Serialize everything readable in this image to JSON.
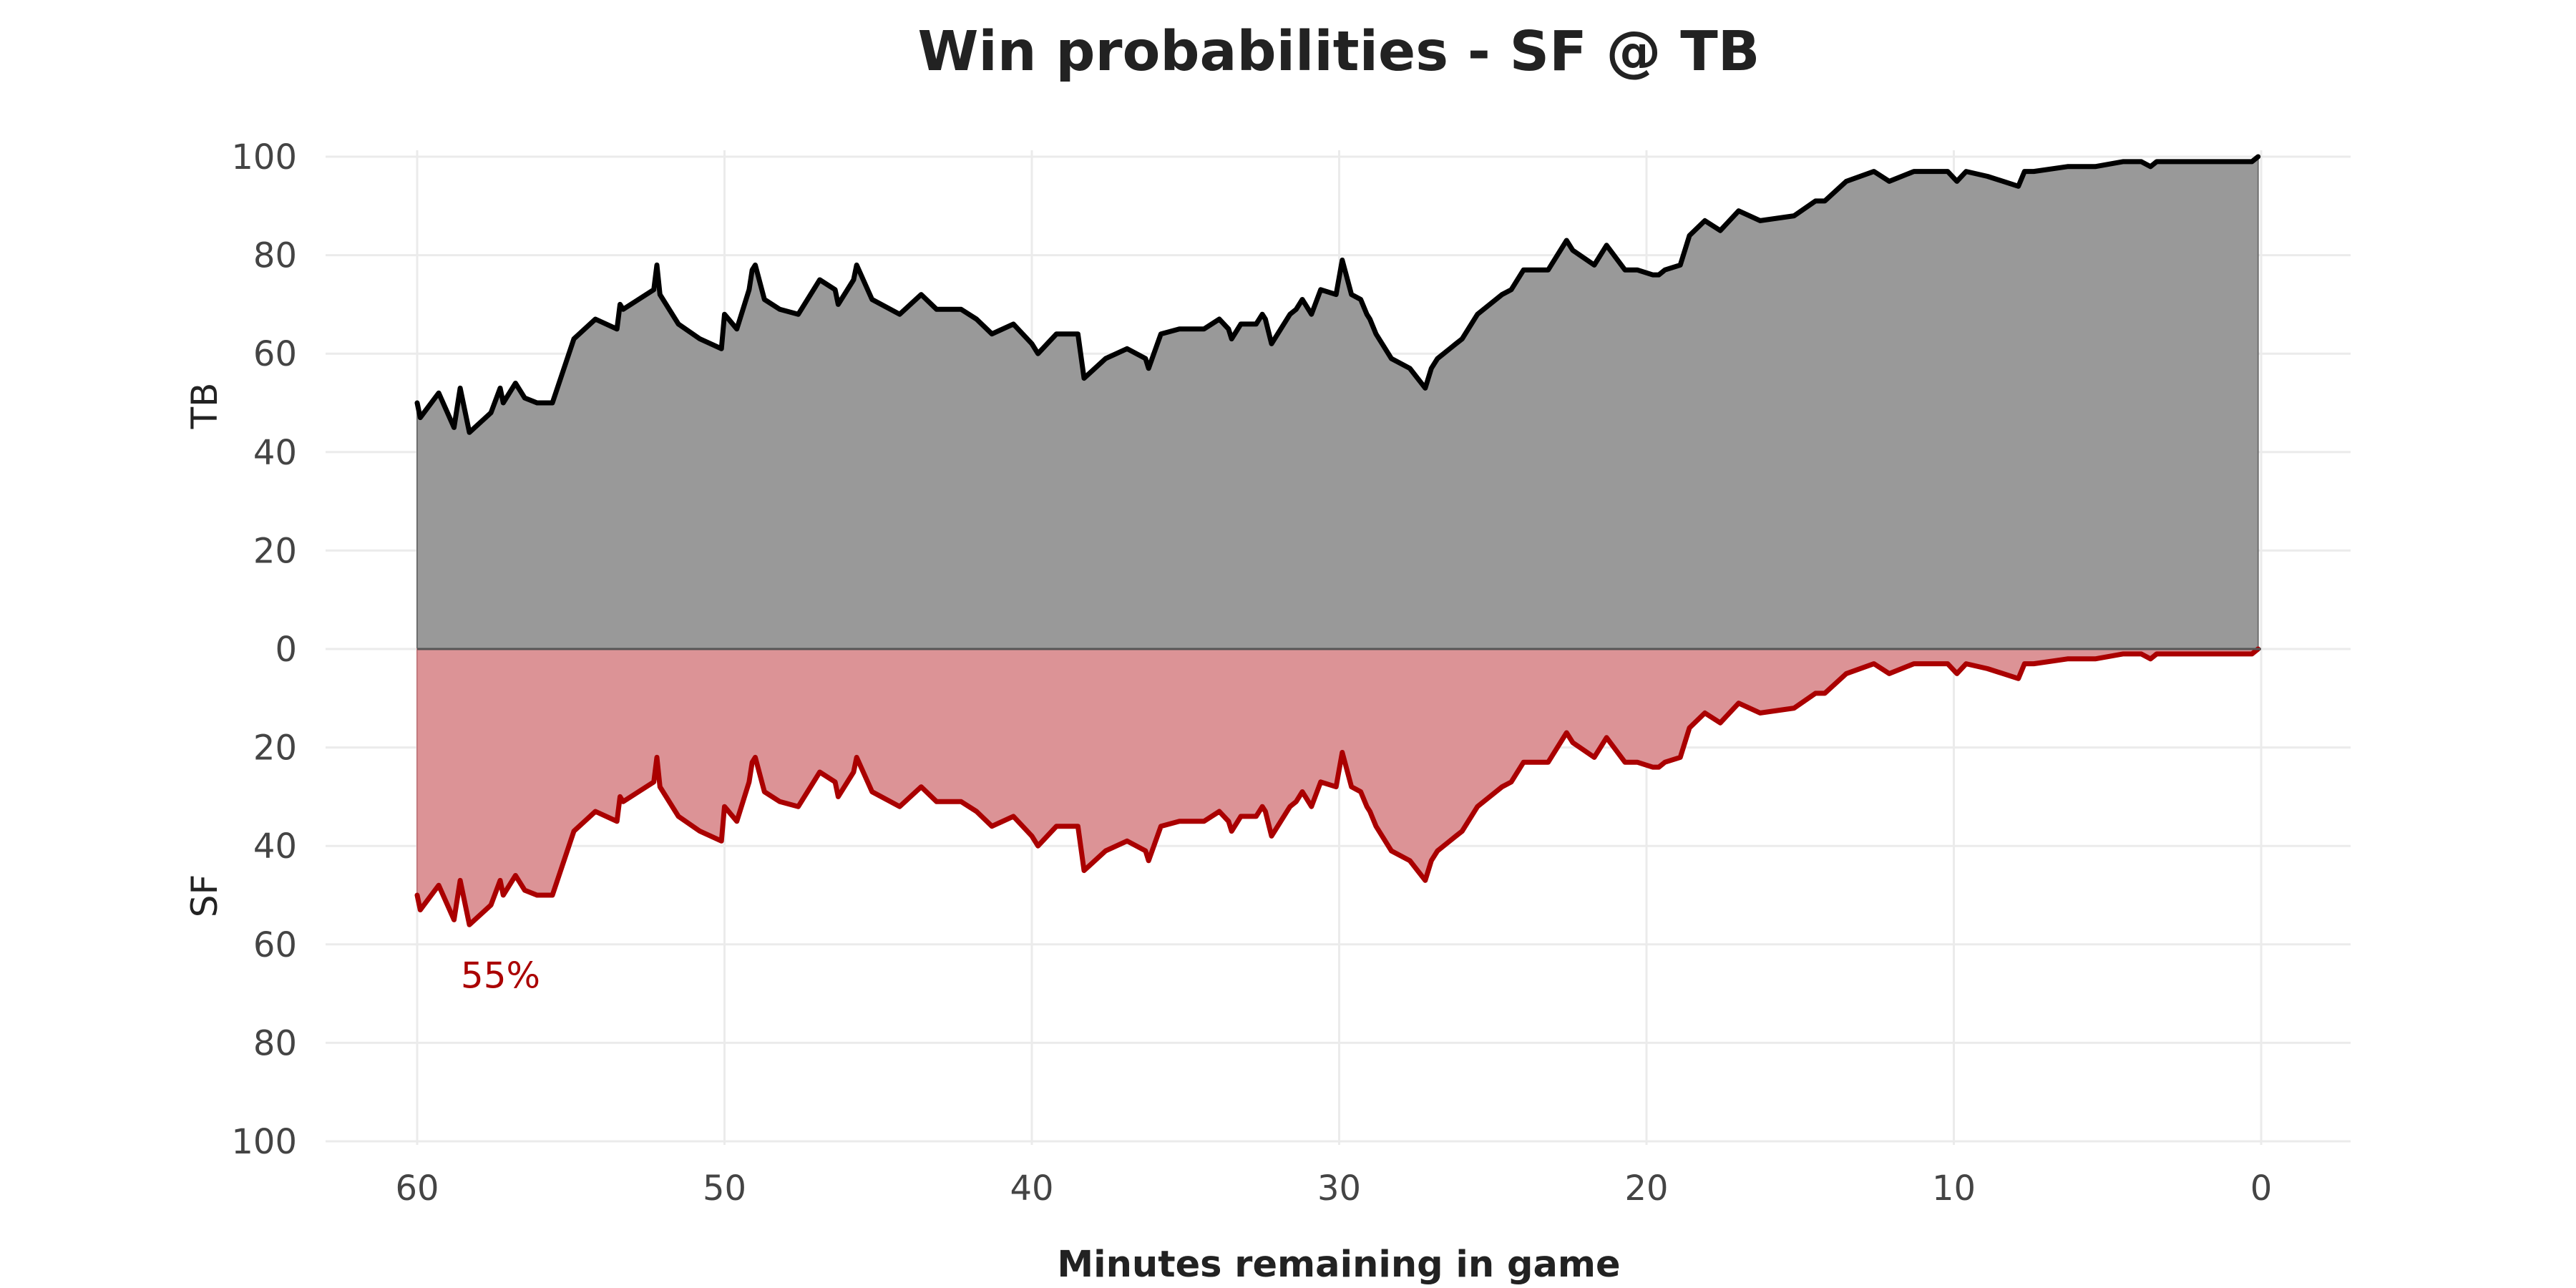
{
  "chart_data": {
    "type": "area",
    "title": "Win probabilities - SF @ TB",
    "xlabel": "Minutes remaining in game",
    "ylabel_top": "TB",
    "ylabel_bottom": "SF",
    "xlim": [
      60,
      0
    ],
    "ylim": [
      -100,
      100
    ],
    "x_ticks": [
      60,
      50,
      40,
      30,
      20,
      10,
      0
    ],
    "y_ticks": [
      100,
      80,
      60,
      40,
      20,
      0,
      20,
      40,
      60,
      80,
      100
    ],
    "grid": true,
    "annotation": {
      "text": "55%",
      "x": 58,
      "y": -55,
      "series": "SF"
    },
    "colors": {
      "TB_line": "#000000",
      "TB_fill": "#999999",
      "SF_line": "#aa0000",
      "SF_fill": "#dc9396"
    },
    "series": [
      {
        "name": "TB",
        "x": [
          60,
          59.9,
          59.3,
          58.8,
          58.6,
          58.3,
          57.6,
          57.3,
          57.2,
          56.8,
          56.5,
          56.1,
          55.6,
          54.9,
          54.2,
          53.5,
          53.4,
          53.3,
          52.3,
          52.2,
          52.1,
          51.5,
          50.8,
          50.1,
          50.0,
          49.6,
          49.2,
          49.1,
          49.0,
          48.7,
          48.2,
          47.6,
          46.9,
          46.4,
          46.3,
          45.8,
          45.7,
          45.2,
          44.3,
          43.6,
          43.1,
          42.3,
          41.8,
          41.3,
          40.6,
          40.0,
          39.8,
          39.2,
          38.5,
          38.3,
          37.6,
          36.9,
          36.3,
          36.2,
          35.8,
          35.2,
          34.4,
          33.9,
          33.6,
          33.5,
          33.2,
          32.7,
          32.5,
          32.4,
          32.2,
          31.6,
          31.4,
          31.2,
          31.1,
          30.9,
          30.6,
          30.1,
          29.9,
          29.6,
          29.3,
          29.1,
          29.0,
          28.8,
          28.3,
          27.7,
          27.2,
          27.0,
          26.8,
          26.4,
          26.2,
          26.0,
          25.5,
          24.7,
          24.4,
          24.0,
          23.2,
          22.6,
          22.4,
          21.7,
          21.3,
          20.7,
          20.3,
          19.8,
          19.6,
          19.4,
          18.9,
          18.6,
          18.1,
          17.6,
          17.0,
          16.3,
          15.2,
          14.5,
          14.2,
          13.5,
          12.6,
          12.1,
          11.3,
          10.2,
          9.9,
          9.6,
          8.9,
          7.9,
          7.7,
          7.4,
          6.3,
          5.4,
          4.5,
          3.9,
          3.6,
          3.4,
          2.7,
          1.9,
          1.2,
          0.9,
          0.3,
          0.1
        ],
        "values": [
          50,
          47,
          52,
          45,
          53,
          44,
          48,
          53,
          50,
          54,
          51,
          50,
          50,
          63,
          67,
          65,
          70,
          69,
          73,
          78,
          72,
          66,
          63,
          61,
          68,
          65,
          73,
          77,
          78,
          71,
          69,
          68,
          75,
          73,
          70,
          75,
          78,
          71,
          68,
          72,
          69,
          69,
          67,
          64,
          66,
          62,
          60,
          64,
          64,
          55,
          59,
          61,
          59,
          57,
          64,
          65,
          65,
          67,
          65,
          63,
          66,
          66,
          68,
          67,
          62,
          68,
          69,
          71,
          70,
          68,
          73,
          72,
          79,
          72,
          71,
          68,
          67,
          64,
          59,
          57,
          53,
          57,
          59,
          61,
          62,
          63,
          68,
          72,
          73,
          77,
          77,
          83,
          81,
          78,
          82,
          77,
          77,
          76,
          76,
          77,
          78,
          84,
          87,
          85,
          89,
          87,
          88,
          91,
          91,
          95,
          97,
          95,
          97,
          97,
          95,
          97,
          96,
          94,
          97,
          97,
          98,
          98,
          99,
          99,
          98,
          99,
          99,
          99,
          99,
          99,
          99,
          100
        ]
      },
      {
        "name": "SF",
        "x": [
          60,
          59.9,
          59.3,
          58.8,
          58.6,
          58.3,
          57.6,
          57.3,
          57.2,
          56.8,
          56.5,
          56.1,
          55.6,
          54.9,
          54.2,
          53.5,
          53.4,
          53.3,
          52.3,
          52.2,
          52.1,
          51.5,
          50.8,
          50.1,
          50.0,
          49.6,
          49.2,
          49.1,
          49.0,
          48.7,
          48.2,
          47.6,
          46.9,
          46.4,
          46.3,
          45.8,
          45.7,
          45.2,
          44.3,
          43.6,
          43.1,
          42.3,
          41.8,
          41.3,
          40.6,
          40.0,
          39.8,
          39.2,
          38.5,
          38.3,
          37.6,
          36.9,
          36.3,
          36.2,
          35.8,
          35.2,
          34.4,
          33.9,
          33.6,
          33.5,
          33.2,
          32.7,
          32.5,
          32.4,
          32.2,
          31.6,
          31.4,
          31.2,
          31.1,
          30.9,
          30.6,
          30.1,
          29.9,
          29.6,
          29.3,
          29.1,
          29.0,
          28.8,
          28.3,
          27.7,
          27.2,
          27.0,
          26.8,
          26.4,
          26.2,
          26.0,
          25.5,
          24.7,
          24.4,
          24.0,
          23.2,
          22.6,
          22.4,
          21.7,
          21.3,
          20.7,
          20.3,
          19.8,
          19.6,
          19.4,
          18.9,
          18.6,
          18.1,
          17.6,
          17.0,
          16.3,
          15.2,
          14.5,
          14.2,
          13.5,
          12.6,
          12.1,
          11.3,
          10.2,
          9.9,
          9.6,
          8.9,
          7.9,
          7.7,
          7.4,
          6.3,
          5.4,
          4.5,
          3.9,
          3.6,
          3.4,
          2.7,
          1.9,
          1.2,
          0.9,
          0.3,
          0.1
        ],
        "values": [
          50,
          53,
          48,
          55,
          47,
          56,
          52,
          47,
          50,
          46,
          49,
          50,
          50,
          37,
          33,
          35,
          30,
          31,
          27,
          22,
          28,
          34,
          37,
          39,
          32,
          35,
          27,
          23,
          22,
          29,
          31,
          32,
          25,
          27,
          30,
          25,
          22,
          29,
          32,
          28,
          31,
          31,
          33,
          36,
          34,
          38,
          40,
          36,
          36,
          45,
          41,
          39,
          41,
          43,
          36,
          35,
          35,
          33,
          35,
          37,
          34,
          34,
          32,
          33,
          38,
          32,
          31,
          29,
          30,
          32,
          27,
          28,
          21,
          28,
          29,
          32,
          33,
          36,
          41,
          43,
          47,
          43,
          41,
          39,
          38,
          37,
          32,
          28,
          27,
          23,
          23,
          17,
          19,
          22,
          18,
          23,
          23,
          24,
          24,
          23,
          22,
          16,
          13,
          15,
          11,
          13,
          12,
          9,
          9,
          5,
          3,
          5,
          3,
          3,
          5,
          3,
          4,
          6,
          3,
          3,
          2,
          2,
          1,
          1,
          2,
          1,
          1,
          1,
          1,
          1,
          1,
          0
        ]
      }
    ]
  }
}
